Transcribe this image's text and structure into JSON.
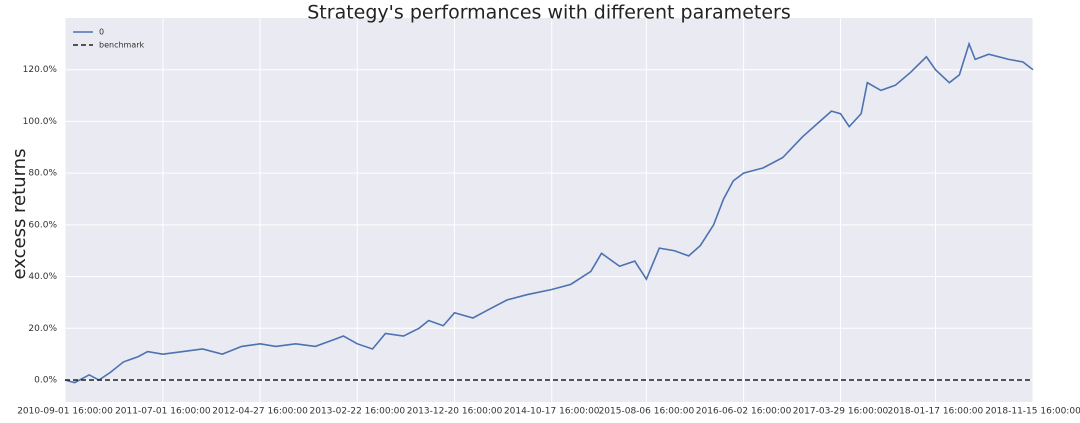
{
  "chart_data": {
    "type": "line",
    "title": "Strategy's performances with different parameters",
    "y_label": "excess returns",
    "x": [
      "2010-09-01",
      "2010-10-01",
      "2010-11-15",
      "2010-12-15",
      "2011-01-20",
      "2011-03-01",
      "2011-04-15",
      "2011-05-15",
      "2011-07-01",
      "2011-09-01",
      "2011-11-01",
      "2012-01-01",
      "2012-03-01",
      "2012-04-27",
      "2012-06-15",
      "2012-08-15",
      "2012-10-15",
      "2012-12-20",
      "2013-01-10",
      "2013-02-22",
      "2013-04-10",
      "2013-05-20",
      "2013-07-15",
      "2013-09-01",
      "2013-10-01",
      "2013-11-15",
      "2013-12-20",
      "2014-02-15",
      "2014-04-01",
      "2014-06-01",
      "2014-08-01",
      "2014-10-17",
      "2014-12-15",
      "2015-02-15",
      "2015-03-20",
      "2015-05-15",
      "2015-07-01",
      "2015-08-06",
      "2015-09-15",
      "2015-11-01",
      "2015-12-15",
      "2016-01-20",
      "2016-03-01",
      "2016-04-01",
      "2016-05-01",
      "2016-06-02",
      "2016-08-01",
      "2016-10-01",
      "2016-12-01",
      "2017-01-15",
      "2017-03-01",
      "2017-03-29",
      "2017-04-25",
      "2017-06-01",
      "2017-06-20",
      "2017-08-01",
      "2017-09-15",
      "2017-11-01",
      "2017-12-20",
      "2018-01-17",
      "2018-03-01",
      "2018-04-01",
      "2018-05-01",
      "2018-05-20",
      "2018-07-01",
      "2018-09-01",
      "2018-10-15",
      "2018-11-15"
    ],
    "series": [
      {
        "name": "0",
        "color": "#4c72b0",
        "dash": "solid",
        "values": [
          0,
          -1,
          2,
          0,
          3,
          7,
          9,
          11,
          10,
          11,
          12,
          10,
          13,
          14,
          13,
          14,
          13,
          16,
          17,
          14,
          12,
          18,
          17,
          20,
          23,
          21,
          26,
          24,
          27,
          31,
          33,
          35,
          37,
          42,
          49,
          44,
          46,
          39,
          51,
          50,
          48,
          52,
          60,
          70,
          77,
          80,
          82,
          86,
          94,
          99,
          104,
          103,
          98,
          103,
          115,
          112,
          114,
          119,
          125,
          120,
          115,
          118,
          130,
          124,
          126,
          124,
          123,
          120
        ]
      },
      {
        "name": "benchmark",
        "color": "#222222",
        "dash": "dashed",
        "values": [
          0,
          0,
          0,
          0,
          0,
          0,
          0,
          0,
          0,
          0,
          0,
          0,
          0,
          0,
          0,
          0,
          0,
          0,
          0,
          0,
          0,
          0,
          0,
          0,
          0,
          0,
          0,
          0,
          0,
          0,
          0,
          0,
          0,
          0,
          0,
          0,
          0,
          0,
          0,
          0,
          0,
          0,
          0,
          0,
          0,
          0,
          0,
          0,
          0,
          0,
          0,
          0,
          0,
          0,
          0,
          0,
          0,
          0,
          0,
          0,
          0,
          0,
          0,
          0,
          0,
          0,
          0,
          0
        ]
      }
    ],
    "xlim": [
      "2010-09-01 16:00:00",
      "2018-11-15 16:00:00"
    ],
    "xticks": [
      "2010-09-01 16:00:00",
      "2011-07-01 16:00:00",
      "2012-04-27 16:00:00",
      "2013-02-22 16:00:00",
      "2013-12-20 16:00:00",
      "2014-10-17 16:00:00",
      "2015-08-06 16:00:00",
      "2016-06-02 16:00:00",
      "2017-03-29 16:00:00",
      "2018-01-17 16:00:00",
      "2018-11-15 16:00:00"
    ],
    "ylim": [
      -8.5,
      140
    ],
    "yticks": [
      {
        "value": 0,
        "label": "0.0%"
      },
      {
        "value": 20,
        "label": "20.0%"
      },
      {
        "value": 40,
        "label": "40.0%"
      },
      {
        "value": 60,
        "label": "60.0%"
      },
      {
        "value": 80,
        "label": "80.0%"
      },
      {
        "value": 100,
        "label": "100.0%"
      },
      {
        "value": 120,
        "label": "120.0%"
      }
    ],
    "grid": true,
    "legend": "upper left"
  }
}
